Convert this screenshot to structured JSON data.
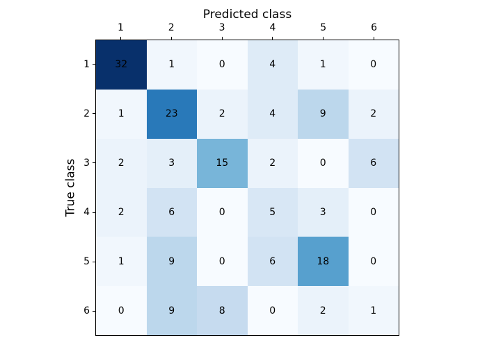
{
  "figure": {
    "background": "#ffffff",
    "frame_color": "#000000",
    "text_color": "#000000"
  },
  "chart_data": {
    "type": "heatmap",
    "subtype": "confusion-matrix",
    "xlabel": "Predicted class",
    "xlabel_position": "top",
    "ylabel": "True class",
    "x_tick_labels": [
      "1",
      "2",
      "3",
      "4",
      "5",
      "6"
    ],
    "y_tick_labels": [
      "1",
      "2",
      "3",
      "4",
      "5",
      "6"
    ],
    "matrix": [
      [
        32,
        1,
        0,
        4,
        1,
        0
      ],
      [
        1,
        23,
        2,
        4,
        9,
        2
      ],
      [
        2,
        3,
        15,
        2,
        0,
        6
      ],
      [
        2,
        6,
        0,
        5,
        3,
        0
      ],
      [
        1,
        9,
        0,
        6,
        18,
        0
      ],
      [
        0,
        9,
        8,
        0,
        2,
        1
      ]
    ],
    "vmin": 0,
    "vmax": 32,
    "colormap": "Blues",
    "colormap_stops": [
      "#f7fbff",
      "#deebf7",
      "#c6dbef",
      "#9ecae1",
      "#6baed6",
      "#4292c6",
      "#2171b5",
      "#08519c",
      "#08306b"
    ],
    "cell_text_color": "#000000",
    "grid": false,
    "legend": false
  }
}
